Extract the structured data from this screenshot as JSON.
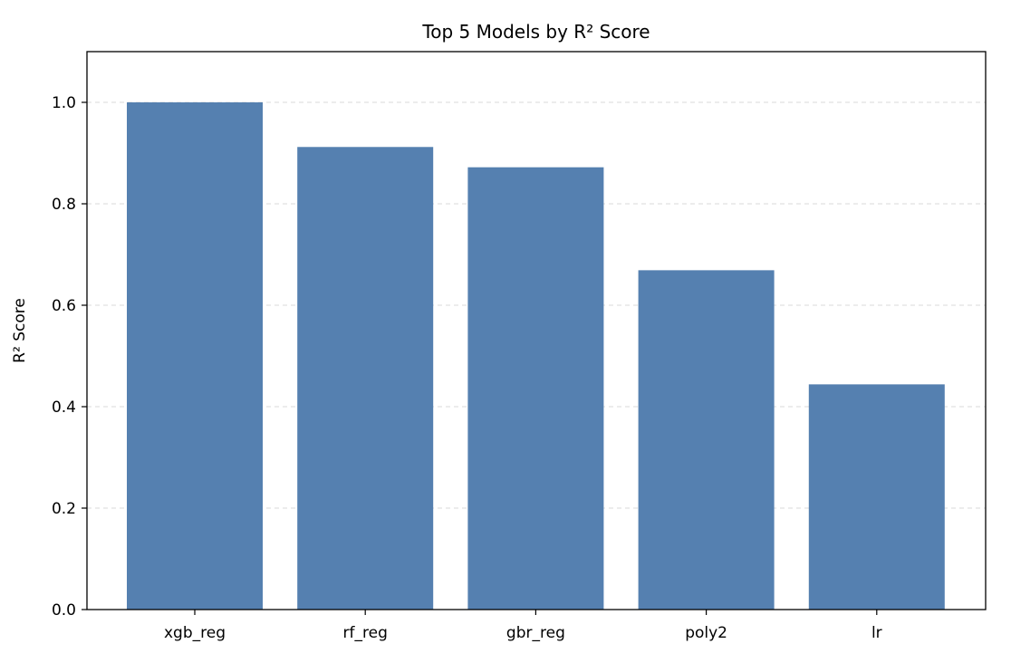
{
  "chart_data": {
    "type": "bar",
    "title": "Top 5 Models by R² Score",
    "xlabel": "",
    "ylabel": "R² Score",
    "categories": [
      "xgb_reg",
      "rf_reg",
      "gbr_reg",
      "poly2",
      "lr"
    ],
    "values": [
      1.0,
      0.912,
      0.872,
      0.669,
      0.444
    ],
    "ylim": [
      0,
      1.1
    ],
    "yticks": [
      "0.0",
      "0.2",
      "0.4",
      "0.6",
      "0.8",
      "1.0"
    ],
    "grid": "y-dashed",
    "bar_color": "#5580b0",
    "grid_color": "#d9d9d9"
  }
}
